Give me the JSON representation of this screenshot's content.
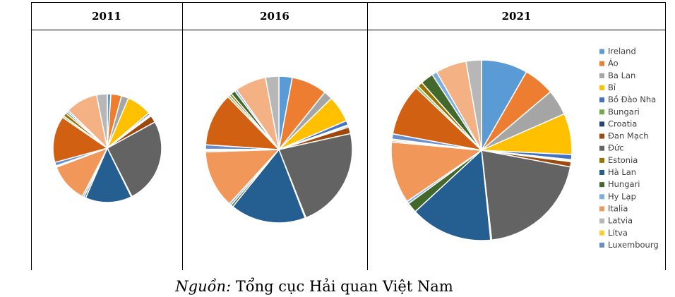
{
  "chart_data": {
    "type": "pie",
    "categories": [
      "Ireland",
      "Áo",
      "Ba Lan",
      "Bỉ",
      "Bồ Đào Nha",
      "Bungari",
      "Croatia",
      "Đan Mạch",
      "Đức",
      "Estonia",
      "Hà Lan",
      "Hungari",
      "Hy Lạp",
      "Italia",
      "Latvia",
      "Lítva",
      "Luxembourg",
      null,
      null,
      null,
      null,
      null,
      null,
      null
    ],
    "colors": [
      "#5b9bd5",
      "#ed7d31",
      "#a5a5a5",
      "#ffc000",
      "#4472c4",
      "#70ad47",
      "#264478",
      "#9e480e",
      "#636363",
      "#997300",
      "#255e91",
      "#43682b",
      "#7cafdd",
      "#f1975a",
      "#b7b7b7",
      "#ffcd33",
      "#698ed0",
      "#d26012",
      "#8cc168",
      "#997300",
      "#43682b",
      "#7cafdd",
      "#f4b183",
      "#b7b7b7"
    ],
    "series": [
      {
        "name": "2011",
        "values": [
          1,
          3,
          2,
          7,
          0.5,
          0.2,
          0.3,
          2,
          24,
          0.2,
          13,
          0.5,
          0.5,
          11,
          0.2,
          0.2,
          1,
          13,
          0.5,
          1,
          0.5,
          0.5,
          9,
          3
        ]
      },
      {
        "name": "2016",
        "values": [
          3,
          8,
          2,
          6,
          1,
          0.2,
          0.3,
          1.5,
          23,
          0.2,
          17,
          0.5,
          0.5,
          13,
          0.3,
          0.3,
          1,
          12,
          0.5,
          0.5,
          1,
          0.5,
          7,
          3
        ]
      },
      {
        "name": "2021",
        "values": [
          9,
          6,
          5,
          8,
          1,
          0.2,
          0.2,
          1,
          22,
          0.2,
          16,
          2,
          0.5,
          12,
          0.3,
          0.3,
          1,
          10,
          0.5,
          1,
          2.5,
          1,
          6,
          3
        ]
      }
    ],
    "source_label": "Nguồn:",
    "source": "Tổng cục Hải quan Việt Nam"
  }
}
